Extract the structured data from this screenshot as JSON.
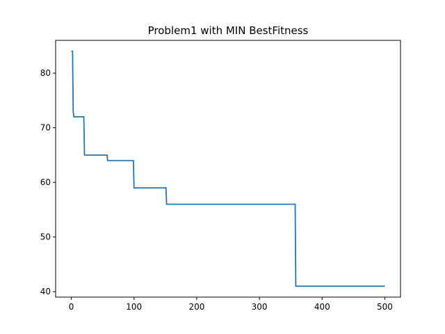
{
  "chart_data": {
    "type": "line",
    "title": "Problem1 with MIN BestFitness",
    "xlabel": "",
    "ylabel": "",
    "xlim": [
      -25,
      525
    ],
    "ylim": [
      39,
      86
    ],
    "xticks": [
      0,
      100,
      200,
      300,
      400,
      500
    ],
    "yticks": [
      40,
      50,
      60,
      70,
      80
    ],
    "grid": false,
    "series": [
      {
        "color": "#1f77b4",
        "points": [
          [
            0,
            84
          ],
          [
            2,
            84
          ],
          [
            3,
            73
          ],
          [
            4,
            72
          ],
          [
            20,
            72
          ],
          [
            21,
            65
          ],
          [
            57,
            65
          ],
          [
            58,
            64
          ],
          [
            99,
            64
          ],
          [
            100,
            59
          ],
          [
            151,
            59
          ],
          [
            152,
            56
          ],
          [
            357,
            56
          ],
          [
            358,
            41
          ],
          [
            500,
            41
          ]
        ]
      }
    ]
  }
}
